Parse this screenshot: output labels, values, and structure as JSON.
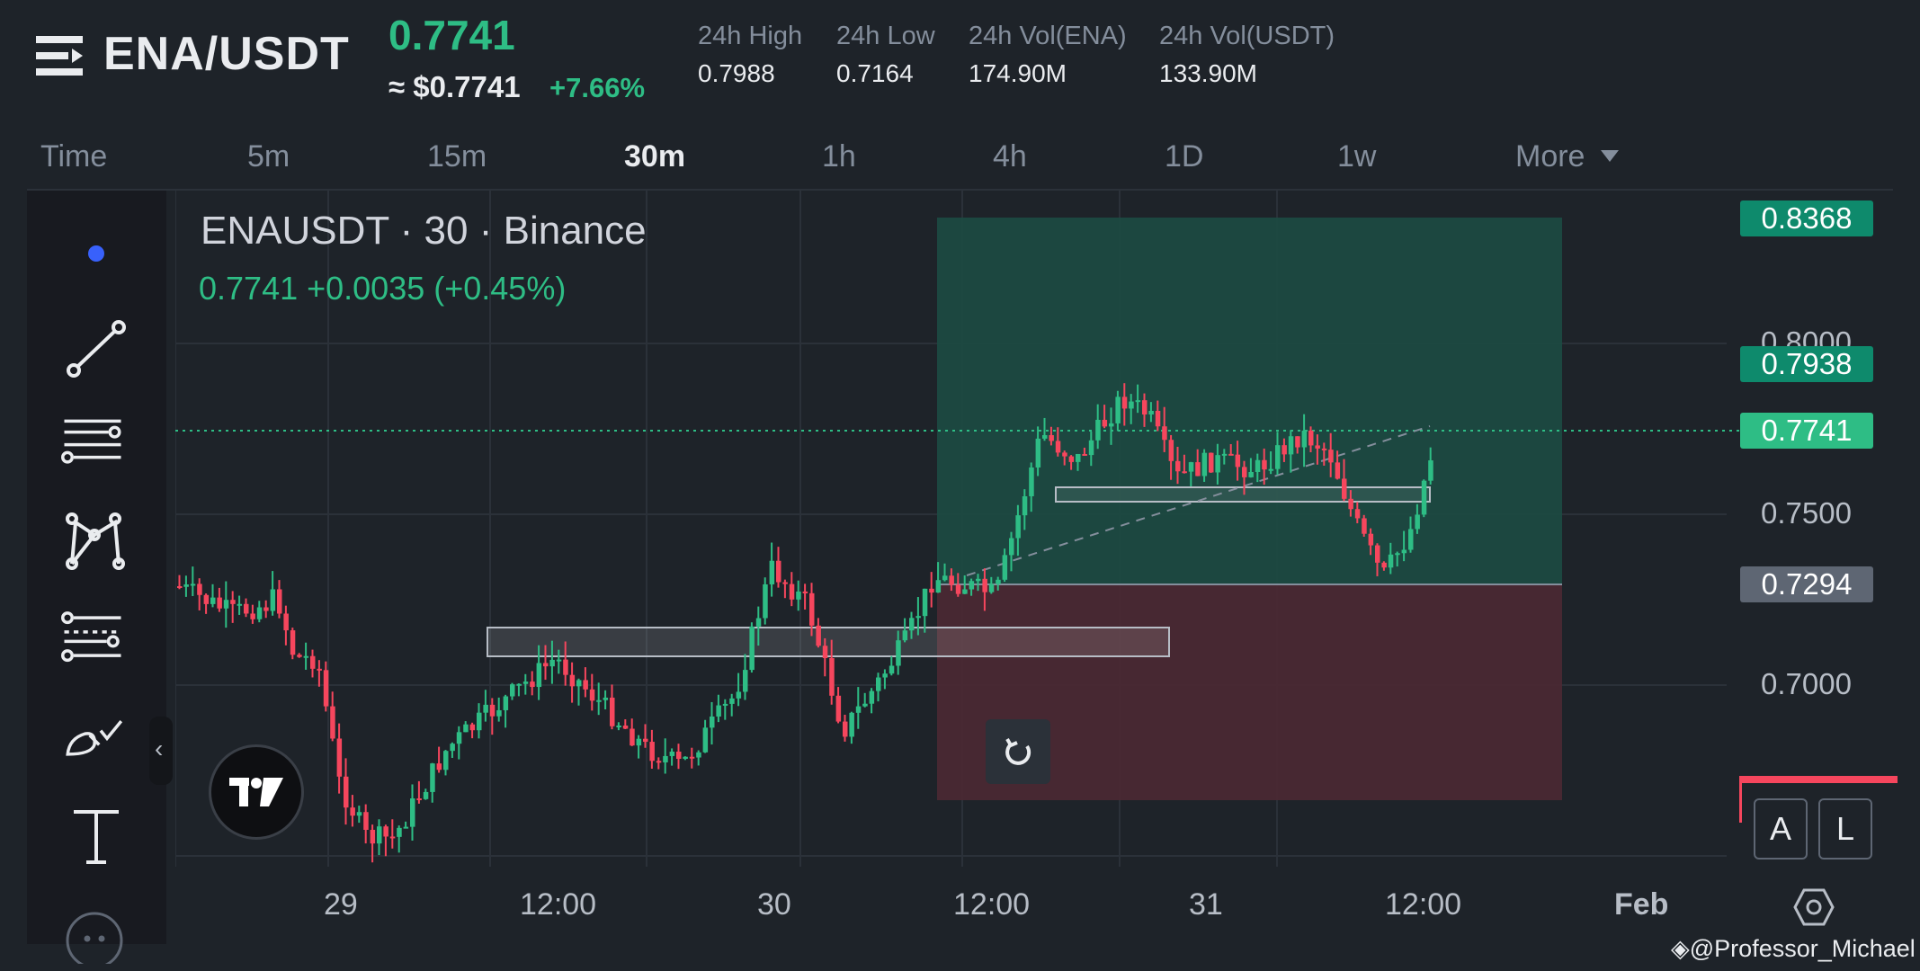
{
  "header": {
    "pair": "ENA/USDT",
    "last_price": "0.7741",
    "usd_price": "≈ $0.7741",
    "change_pct": "+7.66%",
    "stats": [
      {
        "label": "24h High",
        "value": "0.7988"
      },
      {
        "label": "24h Low",
        "value": "0.7164"
      },
      {
        "label": "24h Vol(ENA)",
        "value": "174.90M"
      },
      {
        "label": "24h Vol(USDT)",
        "value": "133.90M"
      }
    ]
  },
  "intervals": {
    "items": [
      "Time",
      "5m",
      "15m",
      "30m",
      "1h",
      "4h",
      "1D",
      "1w",
      "More"
    ],
    "active": "30m"
  },
  "toolbar": {
    "icons": [
      "dot-icon",
      "trend-line-icon",
      "horizontal-lines-icon",
      "pattern-icon",
      "fib-icon",
      "brush-icon",
      "text-icon",
      "more-icon"
    ]
  },
  "chart": {
    "symbol_line": "ENAUSDT · 30 · Binance",
    "legend_values": "0.7741  +0.0035 (+0.45%)",
    "price_tags": {
      "target": "0.8368",
      "level": "0.7938",
      "current": "0.7741",
      "entry": "0.7294"
    },
    "price_axis": [
      "0.8000",
      "0.7500",
      "0.7000"
    ],
    "time_axis": [
      "29",
      "12:00",
      "30",
      "12:00",
      "31",
      "12:00",
      "Feb"
    ],
    "scale_buttons": [
      "A",
      "L"
    ],
    "colors": {
      "up": "#2ebd85",
      "down": "#f6465d",
      "profit_zone": "#1d4a42",
      "loss_zone": "#4a2a33",
      "background": "#1e2329"
    }
  },
  "watermark": "@Professor_Michael"
}
